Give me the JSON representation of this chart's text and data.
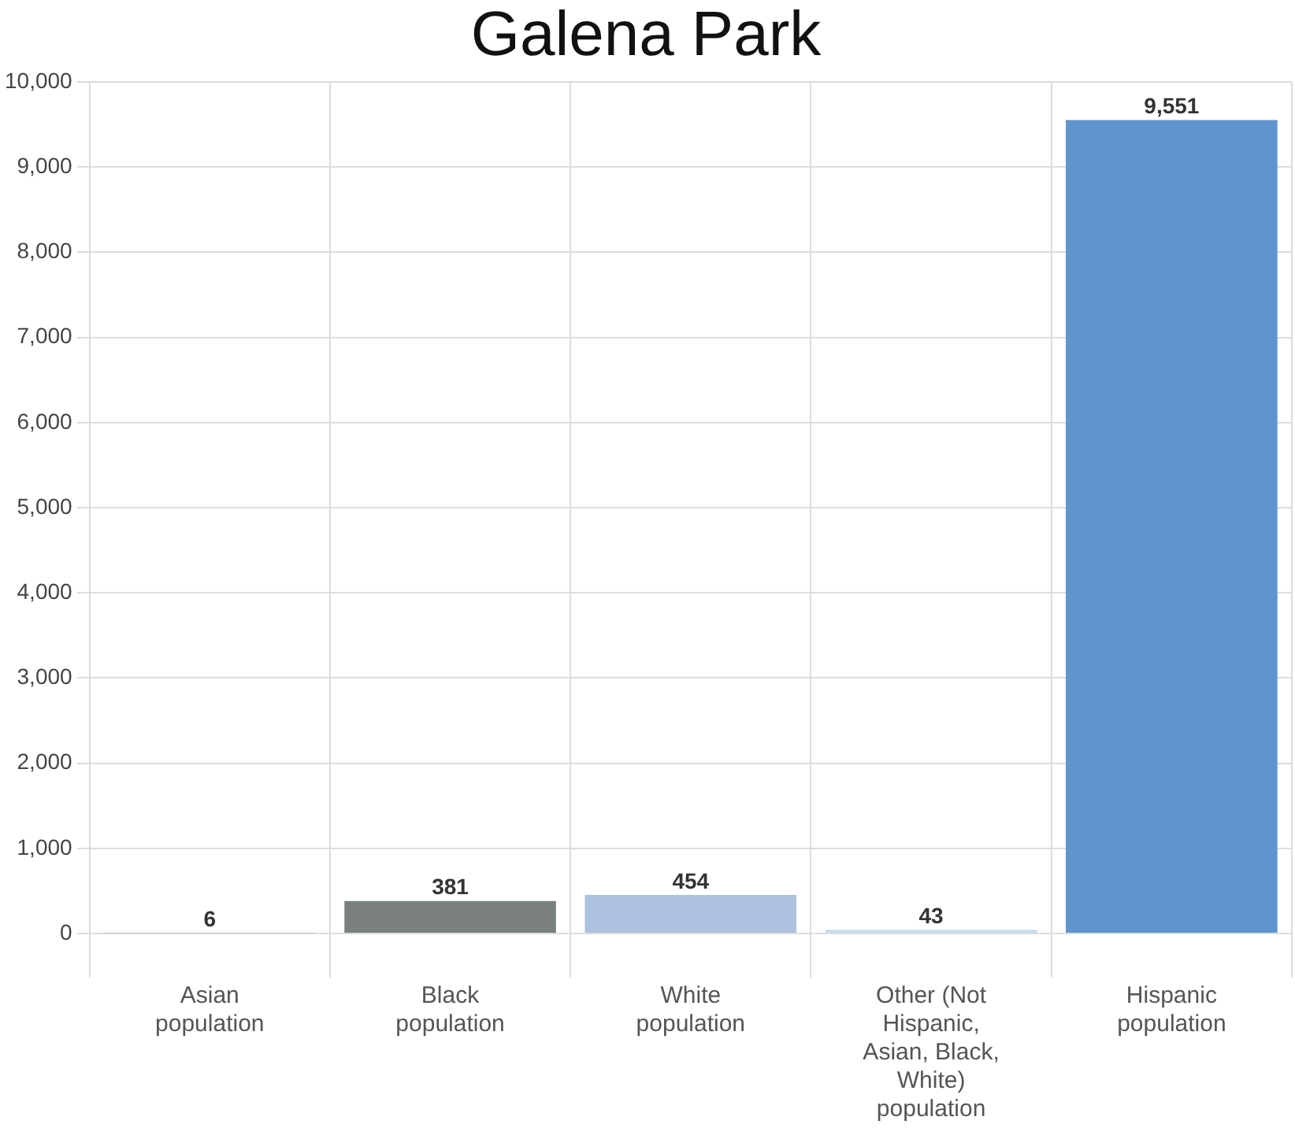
{
  "chart_data": {
    "type": "bar",
    "title": "Galena Park",
    "categories": [
      "Asian population",
      "Black population",
      "White population",
      "Other (Not Hispanic, Asian, Black, White) population",
      "Hispanic population"
    ],
    "values": [
      6,
      381,
      454,
      43,
      9551
    ],
    "value_labels": [
      "6",
      "381",
      "454",
      "43",
      "9,551"
    ],
    "colors": [
      "#8c84c4",
      "#7a7f7f",
      "#adc2de",
      "#c3def0",
      "#5f94cf"
    ],
    "ylim": [
      0,
      10000
    ],
    "yticks": [
      0,
      {
        "value": 1000,
        "label": "1,000"
      },
      {
        "value": 2000,
        "label": "2,000"
      },
      {
        "value": 3000,
        "label": "3,000"
      },
      {
        "value": 4000,
        "label": "4,000"
      },
      {
        "value": 5000,
        "label": "5,000"
      },
      {
        "value": 6000,
        "label": "6,000"
      },
      {
        "value": 7000,
        "label": "7,000"
      },
      {
        "value": 8000,
        "label": "8,000"
      },
      {
        "value": 9000,
        "label": "9,000"
      },
      {
        "value": 10000,
        "label": "10,000"
      }
    ],
    "grid": true,
    "legend": false
  }
}
